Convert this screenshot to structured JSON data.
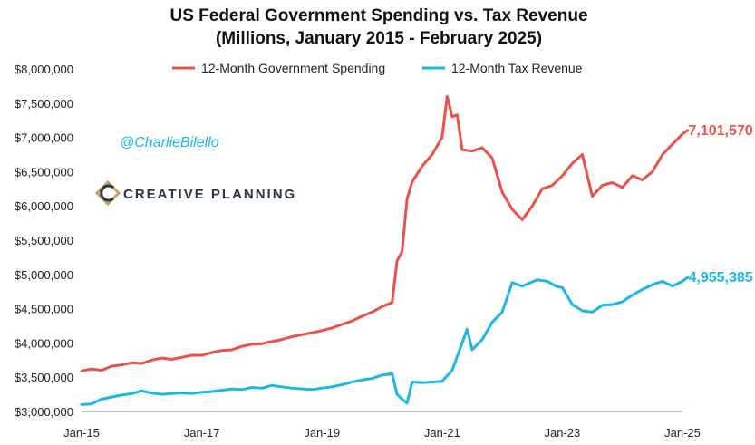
{
  "chart_data": {
    "type": "line",
    "title": "US Federal Government Spending vs. Tax Revenue",
    "subtitle": "(Millions, January 2015 - February 2025)",
    "xlabel": "",
    "ylabel": "",
    "x_tick_labels": [
      "Jan-15",
      "Jan-17",
      "Jan-19",
      "Jan-21",
      "Jan-23",
      "Jan-25"
    ],
    "x_range": [
      "Jan-15",
      "Jan-25"
    ],
    "y_tick_labels": [
      "$3,000,000",
      "$3,500,000",
      "$4,000,000",
      "$4,500,000",
      "$5,000,000",
      "$5,500,000",
      "$6,000,000",
      "$6,500,000",
      "$7,000,000",
      "$7,500,000",
      "$8,000,000"
    ],
    "ylim": [
      3000000,
      8000000
    ],
    "grid": false,
    "legend_position": "top",
    "series": [
      {
        "name": "12-Month Government Spending",
        "color": "#e8524a",
        "end_label": "7,101,570",
        "x": [
          "2015-01",
          "2015-03",
          "2015-05",
          "2015-07",
          "2015-09",
          "2015-11",
          "2016-01",
          "2016-03",
          "2016-05",
          "2016-07",
          "2016-09",
          "2016-11",
          "2017-01",
          "2017-03",
          "2017-05",
          "2017-07",
          "2017-09",
          "2017-11",
          "2018-01",
          "2018-03",
          "2018-05",
          "2018-07",
          "2018-09",
          "2018-11",
          "2019-01",
          "2019-03",
          "2019-05",
          "2019-07",
          "2019-09",
          "2019-11",
          "2020-01",
          "2020-03",
          "2020-04",
          "2020-05",
          "2020-06",
          "2020-07",
          "2020-09",
          "2020-11",
          "2021-01",
          "2021-02",
          "2021-03",
          "2021-04",
          "2021-05",
          "2021-07",
          "2021-09",
          "2021-11",
          "2022-01",
          "2022-03",
          "2022-05",
          "2022-07",
          "2022-09",
          "2022-11",
          "2023-01",
          "2023-03",
          "2023-05",
          "2023-07",
          "2023-09",
          "2023-11",
          "2024-01",
          "2024-03",
          "2024-05",
          "2024-07",
          "2024-09",
          "2024-11",
          "2025-01",
          "2025-02"
        ],
        "values": [
          3590000,
          3620000,
          3600000,
          3660000,
          3680000,
          3710000,
          3700000,
          3750000,
          3780000,
          3760000,
          3790000,
          3820000,
          3820000,
          3860000,
          3890000,
          3900000,
          3950000,
          3980000,
          3990000,
          4020000,
          4050000,
          4090000,
          4120000,
          4150000,
          4180000,
          4220000,
          4270000,
          4320000,
          4390000,
          4450000,
          4530000,
          4590000,
          5200000,
          5330000,
          6100000,
          6350000,
          6580000,
          6750000,
          7000000,
          7600000,
          7300000,
          7330000,
          6820000,
          6800000,
          6850000,
          6700000,
          6200000,
          5950000,
          5800000,
          6000000,
          6250000,
          6300000,
          6440000,
          6620000,
          6750000,
          6140000,
          6300000,
          6340000,
          6270000,
          6440000,
          6380000,
          6500000,
          6750000,
          6900000,
          7050000,
          7101570
        ]
      },
      {
        "name": "12-Month Tax Revenue",
        "color": "#1cb7e3",
        "end_label": "4,955,385",
        "x": [
          "2015-01",
          "2015-03",
          "2015-05",
          "2015-07",
          "2015-09",
          "2015-11",
          "2016-01",
          "2016-03",
          "2016-05",
          "2016-07",
          "2016-09",
          "2016-11",
          "2017-01",
          "2017-03",
          "2017-05",
          "2017-07",
          "2017-09",
          "2017-11",
          "2018-01",
          "2018-03",
          "2018-05",
          "2018-07",
          "2018-09",
          "2018-11",
          "2019-01",
          "2019-03",
          "2019-05",
          "2019-07",
          "2019-09",
          "2019-11",
          "2020-01",
          "2020-03",
          "2020-04",
          "2020-05",
          "2020-06",
          "2020-07",
          "2020-09",
          "2020-11",
          "2021-01",
          "2021-03",
          "2021-05",
          "2021-06",
          "2021-07",
          "2021-09",
          "2021-11",
          "2022-01",
          "2022-03",
          "2022-05",
          "2022-06",
          "2022-08",
          "2022-10",
          "2022-12",
          "2023-01",
          "2023-03",
          "2023-05",
          "2023-07",
          "2023-09",
          "2023-11",
          "2024-01",
          "2024-03",
          "2024-05",
          "2024-07",
          "2024-09",
          "2024-11",
          "2025-01",
          "2025-02"
        ],
        "values": [
          3100000,
          3110000,
          3180000,
          3210000,
          3240000,
          3260000,
          3300000,
          3270000,
          3250000,
          3260000,
          3270000,
          3260000,
          3280000,
          3290000,
          3310000,
          3330000,
          3320000,
          3350000,
          3340000,
          3380000,
          3360000,
          3340000,
          3330000,
          3320000,
          3340000,
          3360000,
          3390000,
          3430000,
          3460000,
          3480000,
          3530000,
          3550000,
          3250000,
          3180000,
          3120000,
          3430000,
          3420000,
          3430000,
          3440000,
          3600000,
          4000000,
          4200000,
          3900000,
          4050000,
          4300000,
          4450000,
          4880000,
          4830000,
          4860000,
          4920000,
          4900000,
          4820000,
          4810000,
          4560000,
          4470000,
          4450000,
          4550000,
          4560000,
          4600000,
          4700000,
          4780000,
          4850000,
          4900000,
          4830000,
          4900000,
          4955385
        ]
      }
    ],
    "annotations": [
      "@CharlieBilello"
    ]
  },
  "branding": {
    "handle": "@CharlieBilello",
    "handle_color": "#1cb7e3",
    "logo_text": "CREATIVE PLANNING",
    "logo_color": "#2a3546",
    "logo_accent": "#c9a063"
  },
  "colors": {
    "axis": "#888888",
    "text": "#222222"
  }
}
